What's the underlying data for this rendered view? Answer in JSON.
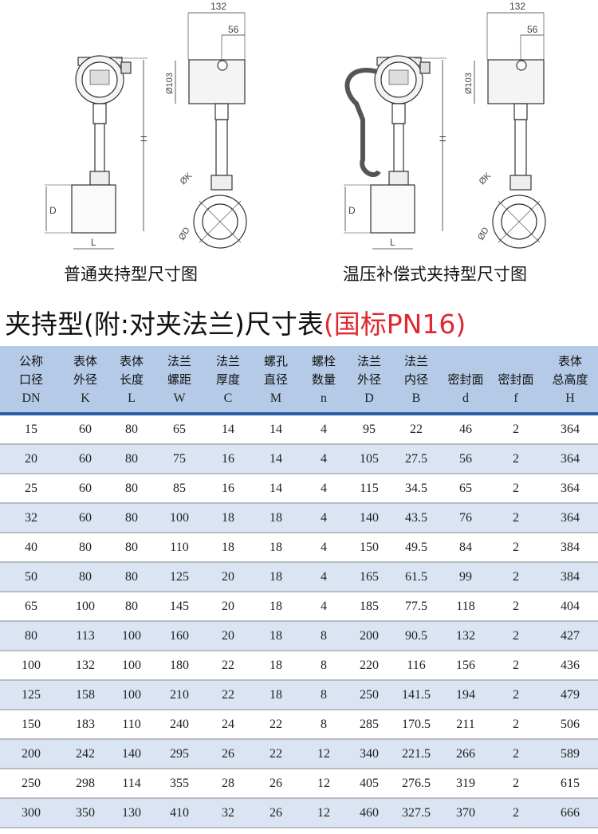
{
  "drawings": [
    {
      "caption": "普通夹持型尺寸图",
      "labels": {
        "width_total": "132",
        "width_offset": "56",
        "head_dia": "Ø103",
        "height": "H",
        "flange_dia": "D",
        "length": "L",
        "body_dia": "ØK",
        "outer_dia": "ØD"
      }
    },
    {
      "caption": "温压补偿式夹持型尺寸图",
      "labels": {
        "width_total": "132",
        "width_offset": "56",
        "head_dia": "Ø103",
        "height": "H",
        "flange_dia": "D",
        "length": "L",
        "body_dia": "ØK",
        "outer_dia": "ØD"
      }
    }
  ],
  "title": {
    "main": "夹持型(附:对夹法兰)尺寸表",
    "standard": "(国标PN16)",
    "standard_color": "#e0282e"
  },
  "table": {
    "header_color": "#b4cae6",
    "columns": [
      {
        "line1": "公称",
        "line2": "口径",
        "symbol": "DN"
      },
      {
        "line1": "表体",
        "line2": "外径",
        "symbol": "K"
      },
      {
        "line1": "表体",
        "line2": "长度",
        "symbol": "L"
      },
      {
        "line1": "法兰",
        "line2": "螺距",
        "symbol": "W"
      },
      {
        "line1": "法兰",
        "line2": "厚度",
        "symbol": "C"
      },
      {
        "line1": "螺孔",
        "line2": "直径",
        "symbol": "M"
      },
      {
        "line1": "螺栓",
        "line2": "数量",
        "symbol": "n"
      },
      {
        "line1": "法兰",
        "line2": "外径",
        "symbol": "D"
      },
      {
        "line1": "法兰",
        "line2": "内径",
        "symbol": "B"
      },
      {
        "line1": "",
        "line2": "密封面",
        "symbol": "d"
      },
      {
        "line1": "",
        "line2": "密封面",
        "symbol": "f"
      },
      {
        "line1": "表体",
        "line2": "总高度",
        "symbol": "H"
      }
    ],
    "rows": [
      [
        "15",
        "60",
        "80",
        "65",
        "14",
        "14",
        "4",
        "95",
        "22",
        "46",
        "2",
        "364"
      ],
      [
        "20",
        "60",
        "80",
        "75",
        "16",
        "14",
        "4",
        "105",
        "27.5",
        "56",
        "2",
        "364"
      ],
      [
        "25",
        "60",
        "80",
        "85",
        "16",
        "14",
        "4",
        "115",
        "34.5",
        "65",
        "2",
        "364"
      ],
      [
        "32",
        "60",
        "80",
        "100",
        "18",
        "18",
        "4",
        "140",
        "43.5",
        "76",
        "2",
        "364"
      ],
      [
        "40",
        "80",
        "80",
        "110",
        "18",
        "18",
        "4",
        "150",
        "49.5",
        "84",
        "2",
        "384"
      ],
      [
        "50",
        "80",
        "80",
        "125",
        "20",
        "18",
        "4",
        "165",
        "61.5",
        "99",
        "2",
        "384"
      ],
      [
        "65",
        "100",
        "80",
        "145",
        "20",
        "18",
        "4",
        "185",
        "77.5",
        "118",
        "2",
        "404"
      ],
      [
        "80",
        "113",
        "100",
        "160",
        "20",
        "18",
        "8",
        "200",
        "90.5",
        "132",
        "2",
        "427"
      ],
      [
        "100",
        "132",
        "100",
        "180",
        "22",
        "18",
        "8",
        "220",
        "116",
        "156",
        "2",
        "436"
      ],
      [
        "125",
        "158",
        "100",
        "210",
        "22",
        "18",
        "8",
        "250",
        "141.5",
        "194",
        "2",
        "479"
      ],
      [
        "150",
        "183",
        "110",
        "240",
        "24",
        "22",
        "8",
        "285",
        "170.5",
        "211",
        "2",
        "506"
      ],
      [
        "200",
        "242",
        "140",
        "295",
        "26",
        "22",
        "12",
        "340",
        "221.5",
        "266",
        "2",
        "589"
      ],
      [
        "250",
        "298",
        "114",
        "355",
        "28",
        "26",
        "12",
        "405",
        "276.5",
        "319",
        "2",
        "615"
      ],
      [
        "300",
        "350",
        "130",
        "410",
        "32",
        "26",
        "12",
        "460",
        "327.5",
        "370",
        "2",
        "666"
      ]
    ]
  }
}
